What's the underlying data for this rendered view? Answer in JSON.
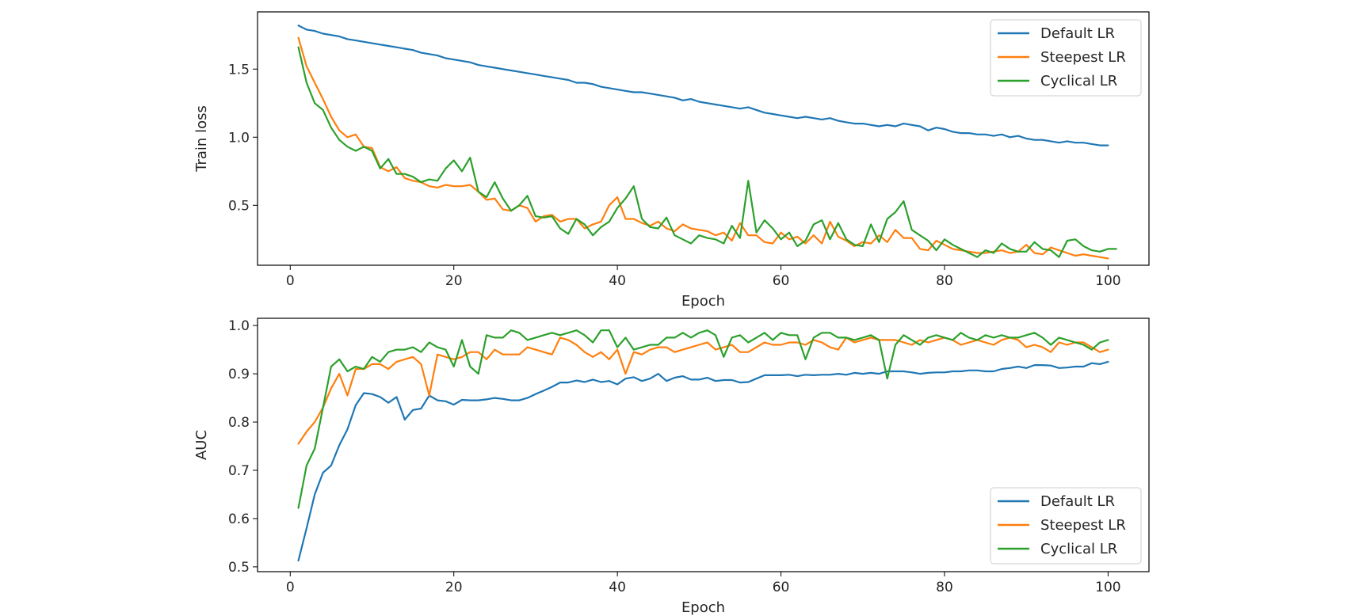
{
  "chart_data": [
    {
      "type": "line",
      "title": "",
      "xlabel": "Epoch",
      "ylabel": "Train loss",
      "xlim": [
        -4,
        105
      ],
      "ylim": [
        0.06,
        1.92
      ],
      "xticks": [
        0,
        20,
        40,
        60,
        80,
        100
      ],
      "yticks": [
        0.5,
        1.0,
        1.5
      ],
      "ytick_labels": [
        "0.5",
        "1.0",
        "1.5"
      ],
      "grid": false,
      "legend_position": "top-right",
      "x_start": 1,
      "series": [
        {
          "name": "Default LR",
          "color": "#1f77b4",
          "values": [
            1.82,
            1.79,
            1.78,
            1.76,
            1.75,
            1.74,
            1.72,
            1.71,
            1.7,
            1.69,
            1.68,
            1.67,
            1.66,
            1.65,
            1.64,
            1.62,
            1.61,
            1.6,
            1.58,
            1.57,
            1.56,
            1.55,
            1.53,
            1.52,
            1.51,
            1.5,
            1.49,
            1.48,
            1.47,
            1.46,
            1.45,
            1.44,
            1.43,
            1.42,
            1.4,
            1.4,
            1.39,
            1.37,
            1.36,
            1.35,
            1.34,
            1.33,
            1.33,
            1.32,
            1.31,
            1.3,
            1.29,
            1.27,
            1.28,
            1.26,
            1.25,
            1.24,
            1.23,
            1.22,
            1.21,
            1.22,
            1.2,
            1.18,
            1.17,
            1.16,
            1.15,
            1.14,
            1.15,
            1.14,
            1.13,
            1.14,
            1.12,
            1.11,
            1.1,
            1.1,
            1.09,
            1.08,
            1.09,
            1.08,
            1.1,
            1.09,
            1.08,
            1.05,
            1.07,
            1.06,
            1.04,
            1.03,
            1.03,
            1.02,
            1.02,
            1.01,
            1.02,
            1.0,
            1.01,
            0.99,
            0.98,
            0.98,
            0.97,
            0.96,
            0.97,
            0.96,
            0.96,
            0.95,
            0.94,
            0.94
          ]
        },
        {
          "name": "Steepest LR",
          "color": "#ff7f0e",
          "values": [
            1.73,
            1.52,
            1.4,
            1.28,
            1.15,
            1.05,
            1.0,
            1.02,
            0.93,
            0.92,
            0.78,
            0.75,
            0.78,
            0.7,
            0.68,
            0.67,
            0.64,
            0.63,
            0.65,
            0.64,
            0.64,
            0.65,
            0.6,
            0.54,
            0.55,
            0.47,
            0.46,
            0.5,
            0.48,
            0.38,
            0.42,
            0.43,
            0.38,
            0.4,
            0.4,
            0.33,
            0.36,
            0.38,
            0.5,
            0.56,
            0.4,
            0.4,
            0.37,
            0.35,
            0.38,
            0.33,
            0.31,
            0.36,
            0.33,
            0.32,
            0.31,
            0.28,
            0.3,
            0.24,
            0.37,
            0.28,
            0.28,
            0.23,
            0.22,
            0.3,
            0.25,
            0.27,
            0.22,
            0.28,
            0.22,
            0.38,
            0.27,
            0.24,
            0.2,
            0.23,
            0.22,
            0.28,
            0.23,
            0.32,
            0.26,
            0.26,
            0.18,
            0.17,
            0.24,
            0.21,
            0.18,
            0.17,
            0.16,
            0.15,
            0.15,
            0.16,
            0.17,
            0.15,
            0.16,
            0.21,
            0.15,
            0.14,
            0.19,
            0.17,
            0.15,
            0.13,
            0.14,
            0.13,
            0.12,
            0.11
          ]
        },
        {
          "name": "Cyclical LR",
          "color": "#2ca02c",
          "values": [
            1.66,
            1.4,
            1.25,
            1.2,
            1.07,
            0.98,
            0.93,
            0.9,
            0.93,
            0.9,
            0.77,
            0.84,
            0.73,
            0.73,
            0.71,
            0.67,
            0.69,
            0.68,
            0.77,
            0.83,
            0.75,
            0.85,
            0.6,
            0.56,
            0.67,
            0.55,
            0.46,
            0.5,
            0.57,
            0.42,
            0.41,
            0.42,
            0.33,
            0.29,
            0.4,
            0.36,
            0.28,
            0.34,
            0.38,
            0.48,
            0.55,
            0.64,
            0.4,
            0.34,
            0.33,
            0.41,
            0.28,
            0.25,
            0.22,
            0.28,
            0.26,
            0.25,
            0.22,
            0.35,
            0.26,
            0.68,
            0.3,
            0.39,
            0.33,
            0.25,
            0.3,
            0.2,
            0.24,
            0.36,
            0.39,
            0.25,
            0.37,
            0.25,
            0.21,
            0.2,
            0.36,
            0.23,
            0.4,
            0.45,
            0.53,
            0.32,
            0.28,
            0.24,
            0.17,
            0.25,
            0.21,
            0.18,
            0.15,
            0.12,
            0.17,
            0.15,
            0.22,
            0.18,
            0.16,
            0.16,
            0.23,
            0.18,
            0.17,
            0.12,
            0.24,
            0.25,
            0.2,
            0.17,
            0.16,
            0.18,
            0.18
          ]
        }
      ]
    },
    {
      "type": "line",
      "title": "",
      "xlabel": "Epoch",
      "ylabel": "AUC",
      "xlim": [
        -4,
        105
      ],
      "ylim": [
        0.49,
        1.015
      ],
      "xticks": [
        0,
        20,
        40,
        60,
        80,
        100
      ],
      "yticks": [
        0.5,
        0.6,
        0.7,
        0.8,
        0.9,
        1.0
      ],
      "ytick_labels": [
        "0.5",
        "0.6",
        "0.7",
        "0.8",
        "0.9",
        "1.0"
      ],
      "grid": false,
      "legend_position": "bottom-right",
      "x_start": 1,
      "series": [
        {
          "name": "Default LR",
          "color": "#1f77b4",
          "values": [
            0.513,
            0.58,
            0.65,
            0.695,
            0.71,
            0.752,
            0.785,
            0.835,
            0.86,
            0.858,
            0.852,
            0.84,
            0.852,
            0.805,
            0.825,
            0.828,
            0.855,
            0.845,
            0.843,
            0.836,
            0.846,
            0.845,
            0.845,
            0.847,
            0.85,
            0.848,
            0.845,
            0.845,
            0.85,
            0.858,
            0.865,
            0.873,
            0.882,
            0.882,
            0.886,
            0.883,
            0.888,
            0.883,
            0.885,
            0.878,
            0.89,
            0.893,
            0.885,
            0.89,
            0.9,
            0.885,
            0.892,
            0.895,
            0.888,
            0.888,
            0.892,
            0.885,
            0.887,
            0.887,
            0.882,
            0.883,
            0.89,
            0.897,
            0.897,
            0.897,
            0.898,
            0.895,
            0.898,
            0.897,
            0.898,
            0.898,
            0.9,
            0.898,
            0.902,
            0.9,
            0.902,
            0.9,
            0.905,
            0.905,
            0.905,
            0.903,
            0.9,
            0.902,
            0.903,
            0.903,
            0.905,
            0.905,
            0.907,
            0.907,
            0.905,
            0.905,
            0.91,
            0.912,
            0.915,
            0.912,
            0.918,
            0.918,
            0.917,
            0.912,
            0.913,
            0.915,
            0.915,
            0.922,
            0.92,
            0.925
          ]
        },
        {
          "name": "Steepest LR",
          "color": "#ff7f0e",
          "values": [
            0.755,
            0.78,
            0.8,
            0.83,
            0.87,
            0.9,
            0.855,
            0.91,
            0.91,
            0.92,
            0.92,
            0.91,
            0.925,
            0.93,
            0.935,
            0.92,
            0.855,
            0.94,
            0.935,
            0.93,
            0.935,
            0.945,
            0.945,
            0.93,
            0.95,
            0.94,
            0.94,
            0.94,
            0.955,
            0.95,
            0.945,
            0.94,
            0.975,
            0.97,
            0.96,
            0.945,
            0.935,
            0.945,
            0.93,
            0.95,
            0.9,
            0.945,
            0.94,
            0.95,
            0.955,
            0.955,
            0.945,
            0.95,
            0.955,
            0.96,
            0.965,
            0.95,
            0.955,
            0.96,
            0.945,
            0.945,
            0.955,
            0.965,
            0.96,
            0.96,
            0.965,
            0.965,
            0.96,
            0.97,
            0.965,
            0.955,
            0.95,
            0.975,
            0.965,
            0.97,
            0.975,
            0.97,
            0.97,
            0.97,
            0.965,
            0.96,
            0.97,
            0.965,
            0.97,
            0.975,
            0.97,
            0.96,
            0.965,
            0.97,
            0.965,
            0.96,
            0.97,
            0.975,
            0.97,
            0.955,
            0.96,
            0.955,
            0.945,
            0.965,
            0.96,
            0.965,
            0.965,
            0.955,
            0.945,
            0.95
          ]
        },
        {
          "name": "Cyclical LR",
          "color": "#2ca02c",
          "values": [
            0.622,
            0.71,
            0.745,
            0.83,
            0.915,
            0.93,
            0.905,
            0.915,
            0.91,
            0.935,
            0.925,
            0.945,
            0.95,
            0.95,
            0.955,
            0.945,
            0.965,
            0.955,
            0.95,
            0.915,
            0.97,
            0.915,
            0.9,
            0.98,
            0.975,
            0.975,
            0.99,
            0.985,
            0.97,
            0.975,
            0.98,
            0.985,
            0.98,
            0.985,
            0.99,
            0.98,
            0.965,
            0.99,
            0.99,
            0.955,
            0.975,
            0.95,
            0.955,
            0.96,
            0.96,
            0.975,
            0.975,
            0.985,
            0.975,
            0.985,
            0.99,
            0.98,
            0.935,
            0.975,
            0.98,
            0.965,
            0.975,
            0.985,
            0.97,
            0.985,
            0.98,
            0.98,
            0.93,
            0.975,
            0.985,
            0.985,
            0.975,
            0.975,
            0.97,
            0.975,
            0.98,
            0.97,
            0.89,
            0.96,
            0.98,
            0.97,
            0.96,
            0.975,
            0.98,
            0.975,
            0.97,
            0.985,
            0.975,
            0.97,
            0.98,
            0.975,
            0.98,
            0.975,
            0.975,
            0.98,
            0.985,
            0.975,
            0.96,
            0.975,
            0.97,
            0.965,
            0.96,
            0.95,
            0.965,
            0.97
          ]
        }
      ]
    }
  ]
}
